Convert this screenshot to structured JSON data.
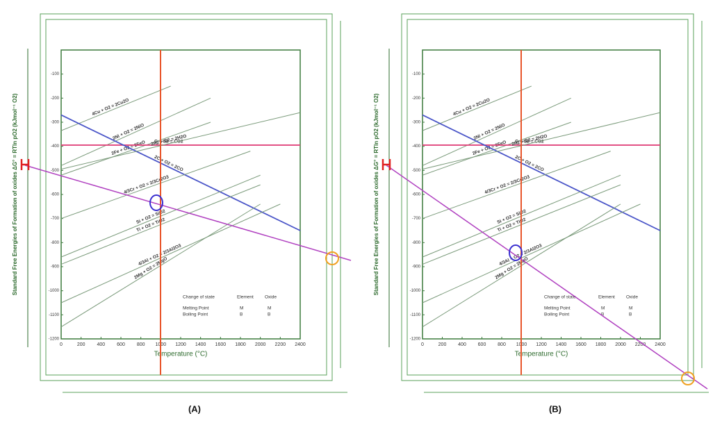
{
  "chart_data": [
    {
      "type": "line",
      "panel_label": "(A)",
      "x_label": "Temperature (°C)",
      "y_label": "Standard Free Energies of Formation of oxides ΔG° = RTln pO2 (kJmol⁻¹ O2)",
      "xlim": [
        0,
        2400
      ],
      "xticks": [
        0,
        200,
        400,
        600,
        800,
        1000,
        1200,
        1400,
        1600,
        1800,
        2000,
        2200,
        2400
      ],
      "ylim": [
        -1200,
        0
      ],
      "yticks": [
        -100,
        -200,
        -300,
        -400,
        -500,
        -600,
        -700,
        -800,
        -900,
        -1000,
        -1100,
        -1200
      ],
      "series": [
        {
          "name": "4Cu + O2 = 2Cu2O",
          "color": "#7a9a7a",
          "x": [
            0,
            1100
          ],
          "values": [
            -335,
            -150
          ]
        },
        {
          "name": "2Ni + O2 = 2NiO",
          "color": "#7a9a7a",
          "x": [
            0,
            1500
          ],
          "values": [
            -480,
            -200
          ]
        },
        {
          "name": "2Fe + O2 = 2FeO",
          "color": "#7a9a7a",
          "x": [
            0,
            1500
          ],
          "values": [
            -520,
            -300
          ]
        },
        {
          "name": "C + O2 = CO2",
          "color": "#e0457b",
          "x": [
            0,
            2400
          ],
          "values": [
            -395,
            -395
          ]
        },
        {
          "name": "2C + O2 = 2CO",
          "color": "#4a55c8",
          "x": [
            0,
            2400
          ],
          "values": [
            -270,
            -750
          ]
        },
        {
          "name": "2H2 + O2 = 2H2O",
          "color": "#7a9a7a",
          "x": [
            0,
            2400
          ],
          "values": [
            -495,
            -260
          ]
        },
        {
          "name": "4/3Cr + O2 = 2/3Cr2O3",
          "color": "#7a9a7a",
          "x": [
            0,
            1900
          ],
          "values": [
            -700,
            -420
          ]
        },
        {
          "name": "Si + O2 = SiO2",
          "color": "#7a9a7a",
          "x": [
            0,
            2000
          ],
          "values": [
            -860,
            -520
          ]
        },
        {
          "name": "Ti + O2 = TiO2",
          "color": "#7a9a7a",
          "x": [
            0,
            2000
          ],
          "values": [
            -890,
            -560
          ]
        },
        {
          "name": "4/3Al + O2 = 2/3Al2O3",
          "color": "#7a9a7a",
          "x": [
            0,
            2200
          ],
          "values": [
            -1050,
            -640
          ]
        },
        {
          "name": "2Mg + O2 = 2MgO",
          "color": "#7a9a7a",
          "x": [
            0,
            2000
          ],
          "values": [
            -1150,
            -640
          ]
        }
      ],
      "state_table": {
        "headers": [
          "Change of state",
          "Element",
          "Oxide"
        ],
        "rows": [
          [
            "Melting Point",
            "M",
            "M"
          ],
          [
            "Boiling Point",
            "B",
            "B"
          ]
        ]
      }
    },
    {
      "type": "line",
      "panel_label": "(B)",
      "x_label": "Temperature (°C)",
      "y_label": "Standard Free Energies of Formation of oxides ΔG° = RTln pO2 (kJmol⁻¹ O2)",
      "xlim": [
        0,
        2400
      ],
      "xticks": [
        0,
        200,
        400,
        600,
        800,
        1000,
        1200,
        1400,
        1600,
        1800,
        2000,
        2200,
        2400
      ],
      "ylim": [
        -1200,
        0
      ],
      "yticks": [
        -100,
        -200,
        -300,
        -400,
        -500,
        -600,
        -700,
        -800,
        -900,
        -1000,
        -1100,
        -1200
      ],
      "series": [
        {
          "name": "4Cu + O2 = 2Cu2O",
          "color": "#7a9a7a",
          "x": [
            0,
            1100
          ],
          "values": [
            -335,
            -150
          ]
        },
        {
          "name": "2Ni + O2 = 2NiO",
          "color": "#7a9a7a",
          "x": [
            0,
            1500
          ],
          "values": [
            -480,
            -200
          ]
        },
        {
          "name": "2Fe + O2 = 2FeO",
          "color": "#7a9a7a",
          "x": [
            0,
            1500
          ],
          "values": [
            -520,
            -300
          ]
        },
        {
          "name": "C + O2 = CO2",
          "color": "#e0457b",
          "x": [
            0,
            2400
          ],
          "values": [
            -395,
            -395
          ]
        },
        {
          "name": "2C + O2 = 2CO",
          "color": "#4a55c8",
          "x": [
            0,
            2400
          ],
          "values": [
            -270,
            -750
          ]
        },
        {
          "name": "2H2 + O2 = 2H2O",
          "color": "#7a9a7a",
          "x": [
            0,
            2400
          ],
          "values": [
            -495,
            -260
          ]
        },
        {
          "name": "4/3Cr + O2 = 2/3Cr2O3",
          "color": "#7a9a7a",
          "x": [
            0,
            1900
          ],
          "values": [
            -700,
            -420
          ]
        },
        {
          "name": "Si + O2 = SiO2",
          "color": "#7a9a7a",
          "x": [
            0,
            2000
          ],
          "values": [
            -860,
            -520
          ]
        },
        {
          "name": "Ti + O2 = TiO2",
          "color": "#7a9a7a",
          "x": [
            0,
            2000
          ],
          "values": [
            -890,
            -560
          ]
        },
        {
          "name": "4/3Al + O2 = 2/3Al2O3",
          "color": "#7a9a7a",
          "x": [
            0,
            2200
          ],
          "values": [
            -1050,
            -640
          ]
        },
        {
          "name": "2Mg + O2 = 2MgO",
          "color": "#7a9a7a",
          "x": [
            0,
            2000
          ],
          "values": [
            -1150,
            -640
          ]
        }
      ],
      "state_table": {
        "headers": [
          "Change of state",
          "Element",
          "Oxide"
        ],
        "rows": [
          [
            "Melting Point",
            "M",
            "M"
          ],
          [
            "Boiling Point",
            "B",
            "B"
          ]
        ]
      }
    }
  ]
}
